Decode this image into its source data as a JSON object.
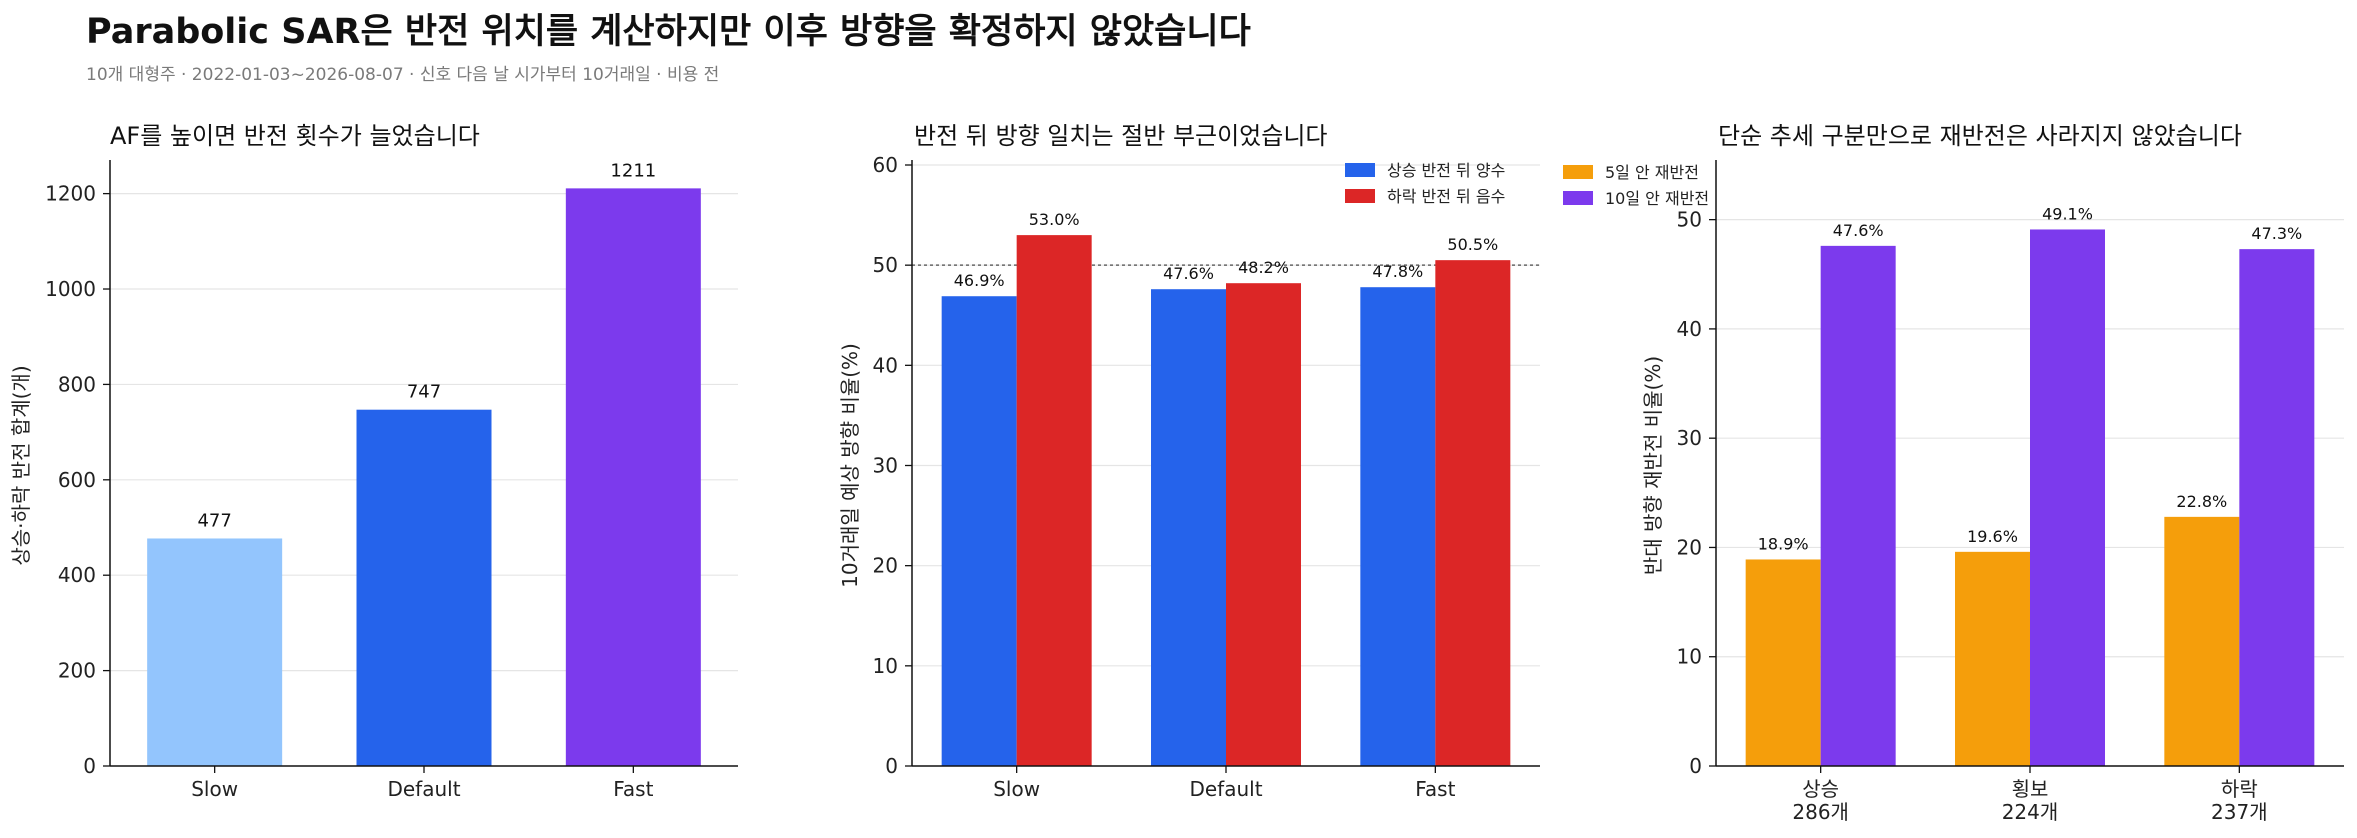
{
  "header": {
    "title": "Parabolic SAR은 반전 위치를 계산하지만 이후 방향을 확정하지 않았습니다",
    "subtitle": "10개 대형주 · 2022-01-03~2026-08-07 · 신호 다음 날 시가부터 10거래일 · 비용 전"
  },
  "colors": {
    "light_blue": "#93c5fd",
    "blue": "#2563eb",
    "purple": "#7c3aed",
    "red": "#dc2626",
    "orange": "#f59e0b",
    "grid": "#e5e5e5",
    "axis": "#111111"
  },
  "chart_data": [
    {
      "type": "bar",
      "title": "AF를 높이면 반전 횟수가 늘었습니다",
      "xlabel": "",
      "ylabel": "상승·하락 반전 합계(개)",
      "categories": [
        "Slow",
        "Default",
        "Fast"
      ],
      "values": [
        477,
        747,
        1211
      ],
      "bar_colors": [
        "#93c5fd",
        "#2563eb",
        "#7c3aed"
      ],
      "value_labels": [
        "477",
        "747",
        "1211"
      ],
      "ylim": [
        0,
        1260
      ],
      "yticks": [
        0,
        200,
        400,
        600,
        800,
        1000,
        1200
      ],
      "grid": true,
      "legend": "none"
    },
    {
      "type": "bar",
      "title": "반전 뒤 방향 일치는 절반 부근이었습니다",
      "xlabel": "",
      "ylabel": "10거래일 예상 방향 비율(%)",
      "categories": [
        "Slow",
        "Default",
        "Fast"
      ],
      "series": [
        {
          "name": "상승 반전 뒤 양수",
          "values": [
            46.9,
            47.6,
            47.8
          ],
          "labels": [
            "46.9%",
            "47.6%",
            "47.8%"
          ],
          "color": "#2563eb"
        },
        {
          "name": "하락 반전 뒤 음수",
          "values": [
            53.0,
            48.2,
            50.5
          ],
          "labels": [
            "53.0%",
            "48.2%",
            "50.5%"
          ],
          "color": "#dc2626"
        }
      ],
      "reference_line": 50,
      "ylim": [
        0,
        60
      ],
      "yticks": [
        0,
        10,
        20,
        30,
        40,
        50,
        60
      ],
      "grid": true,
      "legend": "top-right"
    },
    {
      "type": "bar",
      "title": "단순 추세 구분만으로 재반전은 사라지지 않았습니다",
      "xlabel": "",
      "ylabel": "반대 방향 재반전 비율(%)",
      "categories": [
        "상승",
        "횡보",
        "하락"
      ],
      "category_counts": [
        "286개",
        "224개",
        "237개"
      ],
      "series": [
        {
          "name": "5일 안 재반전",
          "values": [
            18.9,
            19.6,
            22.8
          ],
          "labels": [
            "18.9%",
            "19.6%",
            "22.8%"
          ],
          "color": "#f59e0b"
        },
        {
          "name": "10일 안 재반전",
          "values": [
            47.6,
            49.1,
            47.3
          ],
          "labels": [
            "47.6%",
            "49.1%",
            "47.3%"
          ],
          "color": "#7c3aed"
        }
      ],
      "ylim": [
        0,
        55
      ],
      "yticks": [
        0,
        10,
        20,
        30,
        40,
        50
      ],
      "grid": true,
      "legend": "top-right"
    }
  ]
}
